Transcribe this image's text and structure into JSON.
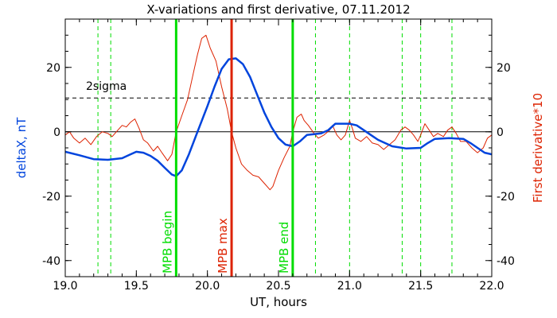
{
  "chart_data": {
    "type": "line",
    "title": "X-variations and first derivative, 07.11.2012",
    "xlabel": "UT, hours",
    "ylabel_left": "deltaX, nT",
    "ylabel_right": "First derivative*10",
    "xlim": [
      19.0,
      22.0
    ],
    "ylim": [
      -45,
      35
    ],
    "x_ticks": [
      "19.0",
      "19.5",
      "20.0",
      "20.5",
      "21.0",
      "21.5",
      "22.0"
    ],
    "y_ticks": [
      "-40",
      "-20",
      "0",
      "20"
    ],
    "sigma_label": "2sigma",
    "sigma_level": 10.5,
    "zero_line": 0,
    "markers": [
      {
        "x": 19.78,
        "label": "MPB begin",
        "color": "#00dd00"
      },
      {
        "x": 20.17,
        "label": "MPB max",
        "color": "#dd2200"
      },
      {
        "x": 20.6,
        "label": "MPB end",
        "color": "#00dd00"
      }
    ],
    "dashed_lines": [
      19.23,
      19.32,
      20.76,
      21.0,
      21.37,
      21.5,
      21.72
    ],
    "series": [
      {
        "name": "deltaX, nT",
        "color": "#0044dd",
        "width": 2.5,
        "points": [
          [
            19.0,
            -6.2
          ],
          [
            19.1,
            -7.3
          ],
          [
            19.2,
            -8.5
          ],
          [
            19.3,
            -8.7
          ],
          [
            19.4,
            -8.2
          ],
          [
            19.45,
            -7.2
          ],
          [
            19.5,
            -6.2
          ],
          [
            19.55,
            -6.5
          ],
          [
            19.6,
            -7.5
          ],
          [
            19.65,
            -9.0
          ],
          [
            19.7,
            -11.2
          ],
          [
            19.75,
            -13.3
          ],
          [
            19.78,
            -13.8
          ],
          [
            19.82,
            -12.0
          ],
          [
            19.87,
            -7.0
          ],
          [
            19.93,
            0.0
          ],
          [
            20.0,
            8.0
          ],
          [
            20.05,
            14.0
          ],
          [
            20.1,
            19.5
          ],
          [
            20.15,
            22.5
          ],
          [
            20.2,
            22.8
          ],
          [
            20.25,
            21.0
          ],
          [
            20.3,
            17.0
          ],
          [
            20.35,
            11.5
          ],
          [
            20.4,
            6.0
          ],
          [
            20.45,
            1.5
          ],
          [
            20.5,
            -2.0
          ],
          [
            20.55,
            -4.0
          ],
          [
            20.6,
            -4.5
          ],
          [
            20.65,
            -3.0
          ],
          [
            20.7,
            -1.0
          ],
          [
            20.8,
            -0.5
          ],
          [
            20.85,
            0.5
          ],
          [
            20.9,
            2.5
          ],
          [
            21.0,
            2.5
          ],
          [
            21.05,
            2.0
          ],
          [
            21.1,
            0.5
          ],
          [
            21.15,
            -1.0
          ],
          [
            21.2,
            -2.5
          ],
          [
            21.3,
            -4.5
          ],
          [
            21.4,
            -5.2
          ],
          [
            21.5,
            -5.0
          ],
          [
            21.55,
            -3.5
          ],
          [
            21.6,
            -2.2
          ],
          [
            21.7,
            -2.0
          ],
          [
            21.8,
            -2.2
          ],
          [
            21.85,
            -3.5
          ],
          [
            21.9,
            -5.0
          ],
          [
            21.95,
            -6.5
          ],
          [
            22.0,
            -7.0
          ]
        ]
      },
      {
        "name": "First derivative*10",
        "color": "#dd2200",
        "width": 1,
        "points": [
          [
            19.0,
            -1.0
          ],
          [
            19.03,
            0.0
          ],
          [
            19.06,
            -2.0
          ],
          [
            19.1,
            -3.5
          ],
          [
            19.14,
            -2.0
          ],
          [
            19.18,
            -4.0
          ],
          [
            19.22,
            -1.5
          ],
          [
            19.26,
            0.0
          ],
          [
            19.3,
            -0.5
          ],
          [
            19.33,
            -1.5
          ],
          [
            19.37,
            0.5
          ],
          [
            19.4,
            2.0
          ],
          [
            19.43,
            1.5
          ],
          [
            19.46,
            3.0
          ],
          [
            19.49,
            4.0
          ],
          [
            19.52,
            1.0
          ],
          [
            19.55,
            -2.5
          ],
          [
            19.58,
            -3.5
          ],
          [
            19.62,
            -6.0
          ],
          [
            19.65,
            -4.5
          ],
          [
            19.68,
            -6.5
          ],
          [
            19.72,
            -9.0
          ],
          [
            19.75,
            -7.0
          ],
          [
            19.78,
            0.0
          ],
          [
            19.82,
            5.0
          ],
          [
            19.86,
            10.0
          ],
          [
            19.9,
            18.0
          ],
          [
            19.93,
            24.0
          ],
          [
            19.96,
            29.0
          ],
          [
            19.99,
            30.0
          ],
          [
            20.02,
            26.0
          ],
          [
            20.06,
            22.0
          ],
          [
            20.1,
            14.0
          ],
          [
            20.14,
            7.0
          ],
          [
            20.17,
            0.0
          ],
          [
            20.2,
            -5.0
          ],
          [
            20.24,
            -10.0
          ],
          [
            20.28,
            -12.0
          ],
          [
            20.32,
            -13.5
          ],
          [
            20.36,
            -14.0
          ],
          [
            20.4,
            -16.0
          ],
          [
            20.44,
            -18.0
          ],
          [
            20.46,
            -17.0
          ],
          [
            20.5,
            -12.0
          ],
          [
            20.54,
            -8.0
          ],
          [
            20.58,
            -4.5
          ],
          [
            20.6,
            0.0
          ],
          [
            20.63,
            4.5
          ],
          [
            20.66,
            5.5
          ],
          [
            20.68,
            3.5
          ],
          [
            20.71,
            2.0
          ],
          [
            20.75,
            -0.5
          ],
          [
            20.78,
            -2.0
          ],
          [
            20.82,
            -1.0
          ],
          [
            20.86,
            0.5
          ],
          [
            20.88,
            2.0
          ],
          [
            20.91,
            -1.0
          ],
          [
            20.94,
            -2.5
          ],
          [
            20.97,
            -1.0
          ],
          [
            21.0,
            3.5
          ],
          [
            21.02,
            1.0
          ],
          [
            21.04,
            -2.0
          ],
          [
            21.08,
            -3.0
          ],
          [
            21.12,
            -1.5
          ],
          [
            21.16,
            -3.5
          ],
          [
            21.2,
            -4.0
          ],
          [
            21.24,
            -5.5
          ],
          [
            21.28,
            -4.0
          ],
          [
            21.32,
            -2.5
          ],
          [
            21.36,
            0.5
          ],
          [
            21.39,
            1.5
          ],
          [
            21.42,
            0.5
          ],
          [
            21.45,
            -1.0
          ],
          [
            21.48,
            -3.0
          ],
          [
            21.5,
            -1.0
          ],
          [
            21.53,
            2.5
          ],
          [
            21.56,
            0.5
          ],
          [
            21.59,
            -1.5
          ],
          [
            21.62,
            -0.5
          ],
          [
            21.66,
            -1.5
          ],
          [
            21.69,
            0.5
          ],
          [
            21.72,
            1.5
          ],
          [
            21.75,
            -0.5
          ],
          [
            21.78,
            -3.0
          ],
          [
            21.82,
            -3.0
          ],
          [
            21.86,
            -5.0
          ],
          [
            21.9,
            -6.5
          ],
          [
            21.94,
            -5.0
          ],
          [
            21.97,
            -2.0
          ],
          [
            22.0,
            -1.0
          ]
        ]
      }
    ]
  }
}
